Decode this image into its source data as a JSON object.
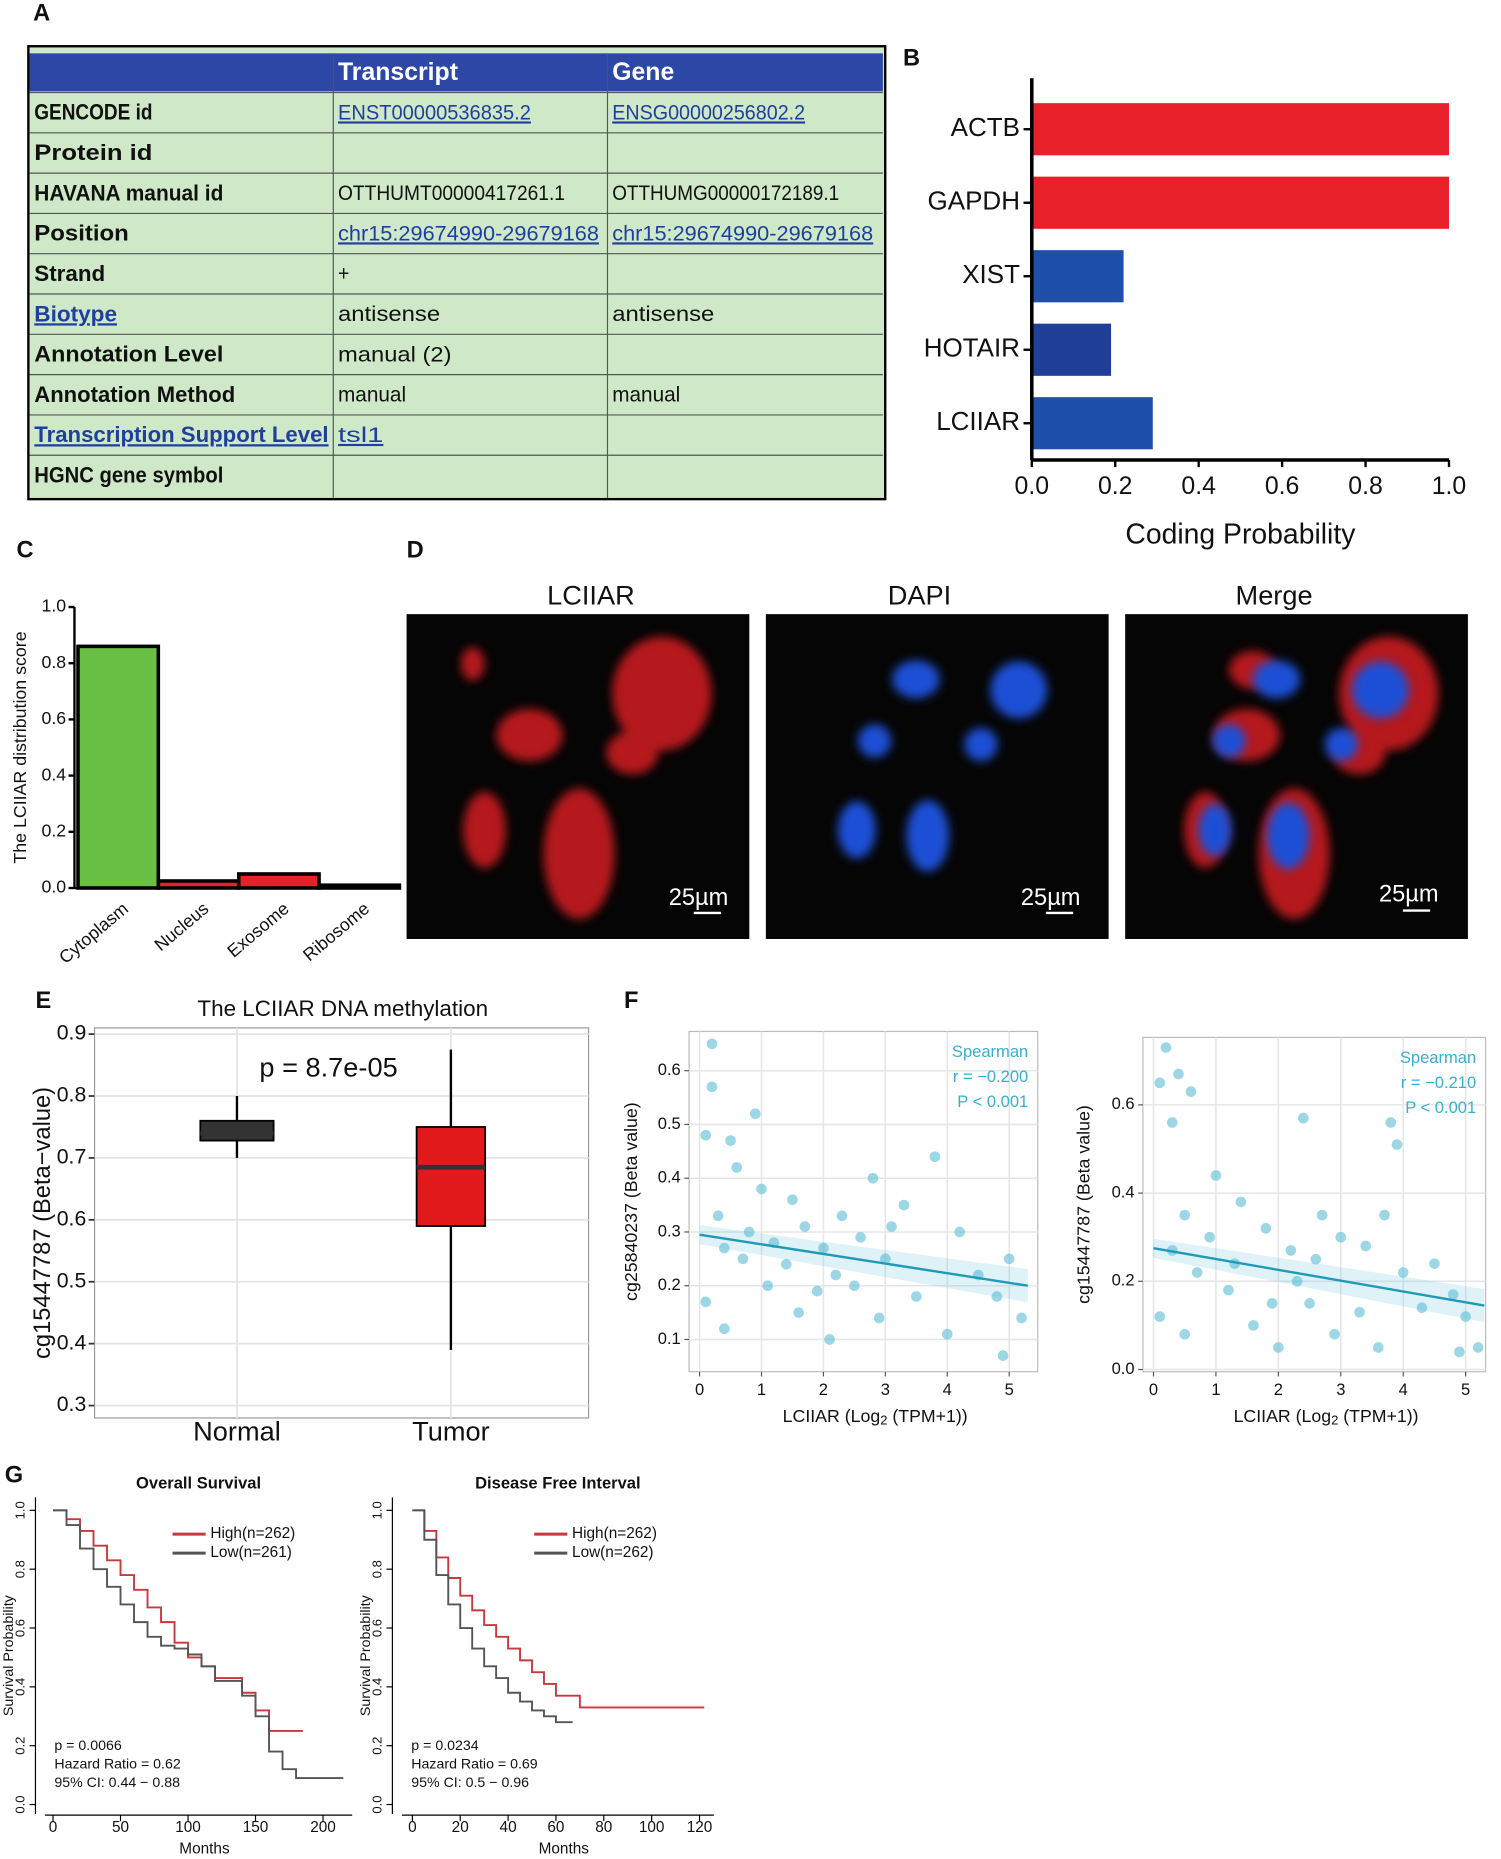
{
  "panels": [
    "A",
    "B",
    "C",
    "D",
    "E",
    "F",
    "G"
  ],
  "table": {
    "header": [
      "",
      "Transcript",
      "Gene"
    ],
    "rows": [
      [
        {
          "text": "GENCODE id"
        },
        {
          "text": "ENST00000536835.2",
          "link": true
        },
        {
          "text": "ENSG00000256802.2",
          "link": true
        }
      ],
      [
        {
          "text": "Protein id"
        },
        {
          "text": ""
        },
        {
          "text": ""
        }
      ],
      [
        {
          "text": "HAVANA manual id"
        },
        {
          "text": "OTTHUMT00000417261.1"
        },
        {
          "text": "OTTHUMG00000172189.1"
        }
      ],
      [
        {
          "text": "Position"
        },
        {
          "text": "chr15:29674990-29679168",
          "link": true
        },
        {
          "text": "chr15:29674990-29679168",
          "link": true
        }
      ],
      [
        {
          "text": "Strand"
        },
        {
          "text": "+"
        },
        {
          "text": ""
        }
      ],
      [
        {
          "text": "Biotype",
          "link": true
        },
        {
          "text": "antisense"
        },
        {
          "text": "antisense"
        }
      ],
      [
        {
          "text": "Annotation Level"
        },
        {
          "text": "manual (2)"
        },
        {
          "text": ""
        }
      ],
      [
        {
          "text": "Annotation Method"
        },
        {
          "text": "manual"
        },
        {
          "text": "manual"
        }
      ],
      [
        {
          "text": "Transcription Support Level",
          "link": true
        },
        {
          "text": "tsl1",
          "link": true
        },
        {
          "text": ""
        }
      ],
      [
        {
          "text": "HGNC gene symbol"
        },
        {
          "text": ""
        },
        {
          "text": ""
        }
      ]
    ]
  },
  "images": {
    "titles": [
      "LCIIAR",
      "DAPI",
      "Merge"
    ],
    "scale_labels": [
      "25µm",
      "25µm",
      "25µm"
    ]
  },
  "chart_data": [
    {
      "type": "barh",
      "categories": [
        "ACTB",
        "GAPDH",
        "XIST",
        "HOTAIR",
        "LCIIAR"
      ],
      "values": [
        1.0,
        1.0,
        0.22,
        0.19,
        0.29
      ],
      "colors": [
        "#e8202a",
        "#e8202a",
        "#1f4fa8",
        "#1f3f98",
        "#1f4fa8"
      ],
      "xlim": [
        0,
        1
      ],
      "xticks": [
        {
          "value": 0,
          "label": "0.0"
        },
        0.2,
        0.4,
        0.6,
        0.8,
        {
          "value": 1,
          "label": "1.0"
        }
      ],
      "xlabel": "Coding Probability"
    },
    {
      "type": "bar",
      "categories": [
        "Cytoplasm",
        "Nucleus",
        "Exosome",
        "Ribosome"
      ],
      "values": [
        0.86,
        0.025,
        0.05,
        0.01
      ],
      "colors": [
        "#6abf45",
        "#e8202a",
        "#e8202a",
        "#999999"
      ],
      "ylim": [
        0,
        1
      ],
      "yticks": [
        {
          "value": 0,
          "label": "0.0"
        },
        0.2,
        0.4,
        0.6,
        0.8,
        {
          "value": 1,
          "label": "1.0"
        }
      ],
      "ylabel": "The LCIIAR distribution score"
    },
    {
      "type": "box",
      "title": "The LCIIAR DNA methylation",
      "annotation": "p = 8.7e-05",
      "categories": [
        "Normal",
        "Tumor"
      ],
      "boxes": [
        {
          "min": 0.7,
          "q1": 0.728,
          "median": 0.74,
          "q3": 0.76,
          "max": 0.8,
          "color": "#333333"
        },
        {
          "min": 0.39,
          "q1": 0.59,
          "median": 0.685,
          "q3": 0.75,
          "max": 0.875,
          "color": "#e31a1c"
        }
      ],
      "ylim": [
        0.28,
        0.91
      ],
      "yticks": [
        0.3,
        0.4,
        0.5,
        0.6,
        0.7,
        0.8,
        0.9
      ],
      "grid": true,
      "ylabel": "cg15447787 (Beta−value)"
    },
    {
      "type": "scatter",
      "color": "#5bbcd6",
      "x": [
        0.2,
        0.2,
        0.1,
        0.5,
        0.9,
        0.6,
        1.0,
        1.5,
        0.3,
        0.8,
        1.2,
        1.7,
        2.0,
        2.3,
        2.6,
        3.0,
        3.3,
        3.8,
        4.2,
        4.5,
        4.8,
        5.0,
        5.2,
        4.9,
        0.1,
        0.4,
        1.1,
        1.6,
        2.1,
        2.5,
        2.9,
        3.5,
        4.0,
        1.4,
        2.2,
        3.1,
        0.7,
        1.9,
        2.8,
        0.4
      ],
      "values": [
        0.65,
        0.57,
        0.48,
        0.47,
        0.52,
        0.42,
        0.38,
        0.36,
        0.33,
        0.3,
        0.28,
        0.31,
        0.27,
        0.33,
        0.29,
        0.25,
        0.35,
        0.44,
        0.3,
        0.22,
        0.18,
        0.25,
        0.14,
        0.07,
        0.17,
        0.12,
        0.2,
        0.15,
        0.1,
        0.2,
        0.14,
        0.18,
        0.11,
        0.24,
        0.22,
        0.31,
        0.25,
        0.19,
        0.4,
        0.27
      ],
      "fit": {
        "x": [
          0,
          5.3
        ],
        "values": [
          0.295,
          0.2
        ]
      },
      "annotations": [
        "Spearman",
        "r = −0.200",
        "P < 0.001"
      ],
      "xlim": [
        -0.17,
        5.46
      ],
      "xticks": [
        0,
        1,
        2,
        3,
        4,
        5
      ],
      "ylim": [
        0.04,
        0.673
      ],
      "yticks": [
        0.1,
        0.2,
        0.3,
        0.4,
        0.5,
        0.6
      ],
      "grid": true,
      "xlabel": [
        "LCIIAR (Log",
        "2",
        " (TPM+1))"
      ],
      "ylabel": "cg25840237 (Beta value)"
    },
    {
      "type": "scatter",
      "color": "#5bbcd6",
      "x": [
        0.2,
        0.4,
        0.1,
        0.6,
        0.3,
        2.4,
        3.8,
        3.9,
        1.0,
        1.4,
        0.5,
        0.9,
        1.8,
        2.2,
        2.6,
        3.0,
        3.4,
        3.7,
        4.0,
        4.5,
        4.8,
        5.0,
        5.2,
        4.9,
        0.1,
        0.5,
        1.2,
        1.6,
        2.0,
        2.5,
        2.9,
        3.3,
        3.6,
        1.3,
        2.3,
        0.7,
        1.9,
        4.3,
        0.3,
        2.7
      ],
      "values": [
        0.73,
        0.67,
        0.65,
        0.63,
        0.56,
        0.57,
        0.56,
        0.51,
        0.44,
        0.38,
        0.35,
        0.3,
        0.32,
        0.27,
        0.25,
        0.3,
        0.28,
        0.35,
        0.22,
        0.24,
        0.17,
        0.12,
        0.05,
        0.04,
        0.12,
        0.08,
        0.18,
        0.1,
        0.05,
        0.15,
        0.08,
        0.13,
        0.05,
        0.24,
        0.2,
        0.22,
        0.15,
        0.14,
        0.27,
        0.35
      ],
      "fit": {
        "x": [
          0,
          5.3
        ],
        "values": [
          0.275,
          0.145
        ]
      },
      "annotations": [
        "Spearman",
        "r = −0.210",
        "P < 0.001"
      ],
      "xlim": [
        -0.17,
        5.32
      ],
      "xticks": [
        0,
        1,
        2,
        3,
        4,
        5
      ],
      "ylim": [
        -0.005,
        0.753
      ],
      "yticks": [
        {
          "value": 0,
          "label": "0.0"
        },
        0.2,
        0.4,
        0.6
      ],
      "grid": true,
      "xlabel": [
        "LCIIAR (Log",
        "2",
        " (TPM+1))"
      ],
      "ylabel": "cg15447787 (Beta value)"
    },
    {
      "type": "line",
      "step": true,
      "title": "Overall Survival",
      "series": [
        {
          "name": "High(n=262)",
          "color": "#c8383c",
          "x": [
            0,
            10,
            20,
            30,
            40,
            50,
            60,
            70,
            80,
            90,
            100,
            110,
            120,
            130,
            140,
            150,
            160,
            185
          ],
          "values": [
            1,
            0.97,
            0.93,
            0.88,
            0.83,
            0.78,
            0.73,
            0.67,
            0.62,
            0.55,
            0.5,
            0.47,
            0.43,
            0.43,
            0.38,
            0.32,
            0.25,
            0.25
          ]
        },
        {
          "name": "Low(n=261)",
          "color": "#555555",
          "x": [
            0,
            10,
            20,
            30,
            40,
            50,
            60,
            70,
            80,
            90,
            100,
            110,
            120,
            130,
            140,
            150,
            160,
            170,
            180,
            215
          ],
          "values": [
            1,
            0.95,
            0.87,
            0.8,
            0.74,
            0.68,
            0.62,
            0.57,
            0.54,
            0.53,
            0.51,
            0.47,
            0.42,
            0.42,
            0.37,
            0.3,
            0.18,
            0.12,
            0.09,
            0.09
          ]
        }
      ],
      "annotations": [
        "p = 0.0066",
        "Hazard Ratio = 0.62",
        "95% CI: 0.44 − 0.88"
      ],
      "xlim": [
        -6,
        221.6
      ],
      "xticks": [
        0,
        50,
        100,
        150,
        200
      ],
      "ylim": [
        -0.032,
        1.044
      ],
      "yticks": [
        {
          "value": 0,
          "label": "0.0"
        },
        0.2,
        0.4,
        0.6,
        0.8,
        {
          "value": 1,
          "label": "1.0"
        }
      ],
      "xlabel": "Months",
      "ylabel": "Survival Probability",
      "legend": "top-right"
    },
    {
      "type": "line",
      "step": true,
      "title": "Disease Free Interval",
      "series": [
        {
          "name": "High(n=262)",
          "color": "#c8383c",
          "x": [
            0,
            5,
            10,
            15,
            20,
            25,
            30,
            35,
            40,
            45,
            50,
            55,
            60,
            70,
            122
          ],
          "values": [
            1,
            0.93,
            0.84,
            0.77,
            0.71,
            0.66,
            0.61,
            0.57,
            0.53,
            0.49,
            0.45,
            0.41,
            0.37,
            0.33,
            0.33
          ]
        },
        {
          "name": "Low(n=262)",
          "color": "#555555",
          "x": [
            0,
            5,
            10,
            15,
            20,
            25,
            30,
            35,
            40,
            45,
            50,
            55,
            60,
            67
          ],
          "values": [
            1,
            0.9,
            0.78,
            0.68,
            0.6,
            0.53,
            0.47,
            0.43,
            0.38,
            0.35,
            0.32,
            0.3,
            0.28,
            0.28
          ]
        }
      ],
      "annotations": [
        "p = 0.0234",
        "Hazard Ratio = 0.69",
        "95% CI: 0.5 − 0.96"
      ],
      "xlim": [
        -4.4,
        126
      ],
      "xticks": [
        0,
        20,
        40,
        60,
        80,
        100,
        120
      ],
      "ylim": [
        -0.032,
        1.044
      ],
      "yticks": [
        {
          "value": 0,
          "label": "0.0"
        },
        0.2,
        0.4,
        0.6,
        0.8,
        {
          "value": 1,
          "label": "1.0"
        }
      ],
      "xlabel": "Months",
      "ylabel": "Survival Probability",
      "legend": "top-right"
    }
  ]
}
